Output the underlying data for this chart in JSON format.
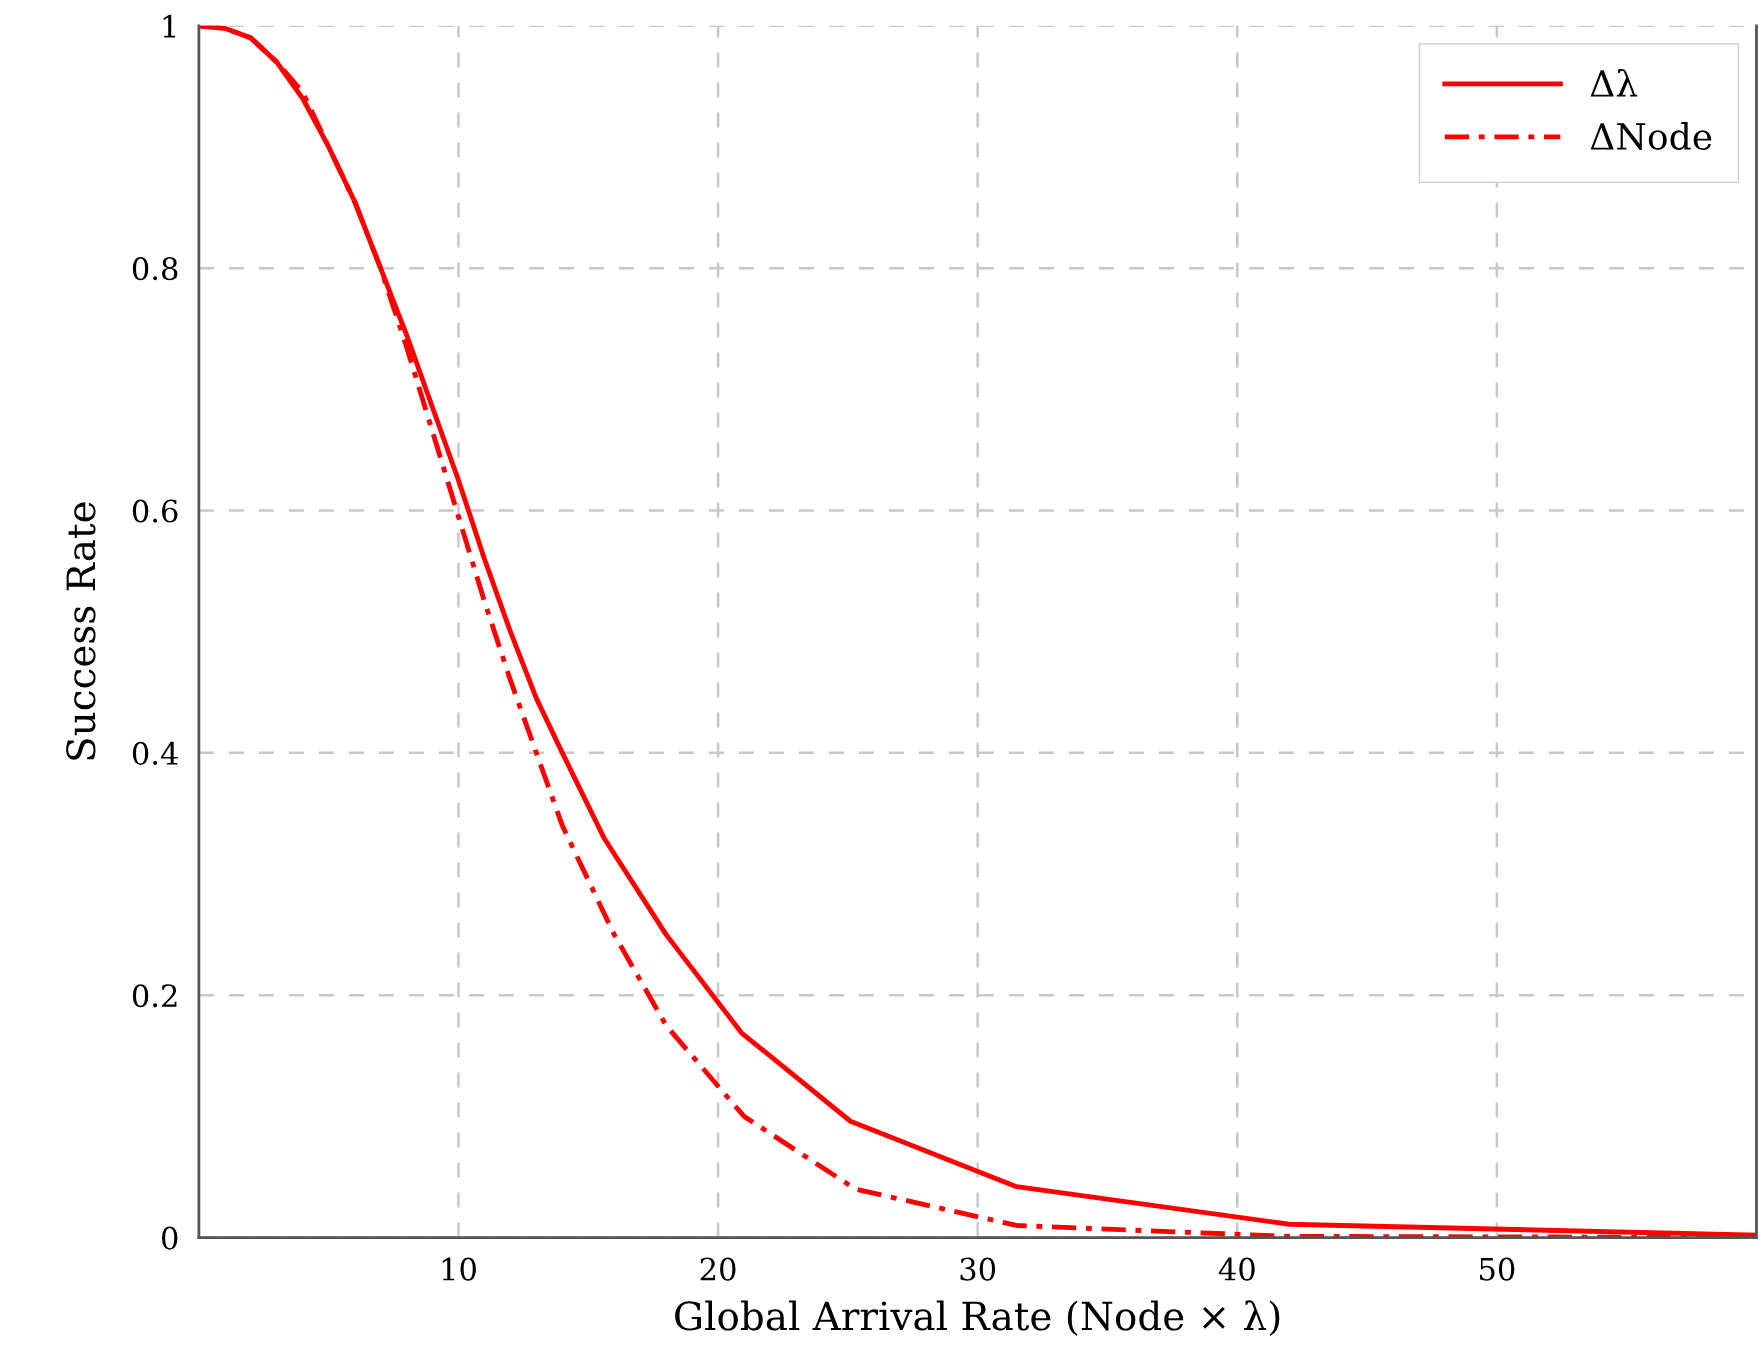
{
  "chart_data": {
    "type": "line",
    "xlabel": "Global Arrival Rate (Node × λ)",
    "ylabel": "Success Rate",
    "xlim": [
      0,
      60
    ],
    "xticks": [
      10,
      20,
      30,
      40,
      50
    ],
    "ylim": [
      0,
      1
    ],
    "yticks": [
      0,
      0.2,
      0.4,
      0.6,
      0.8,
      1
    ],
    "grid": true,
    "legend": "top right",
    "series": [
      {
        "name": "Δλ",
        "color": "#ff0000",
        "line_style": "solid",
        "x": [
          0,
          1,
          2,
          3,
          4,
          5,
          6,
          7,
          8,
          9,
          10,
          11,
          12,
          13,
          14,
          15.6,
          18,
          20.9,
          25.1,
          31.5,
          42,
          60
        ],
        "values": [
          1,
          0.998,
          0.99,
          0.97,
          0.94,
          0.9,
          0.855,
          0.8,
          0.745,
          0.685,
          0.625,
          0.56,
          0.5,
          0.445,
          0.4,
          0.33,
          0.25,
          0.169,
          0.096,
          0.042,
          0.011,
          0.002
        ]
      },
      {
        "name": "ΔNode",
        "color": "#ff0000",
        "line_style": "dashdot",
        "x": [
          0,
          1,
          2,
          3,
          4,
          5,
          6,
          7,
          8,
          9,
          10,
          11,
          12,
          13,
          14,
          16,
          18,
          21,
          25.3,
          31.5,
          42,
          60
        ],
        "values": [
          1,
          0.998,
          0.99,
          0.97,
          0.945,
          0.9,
          0.855,
          0.8,
          0.735,
          0.665,
          0.595,
          0.525,
          0.46,
          0.4,
          0.34,
          0.25,
          0.175,
          0.1,
          0.04,
          0.01,
          0.001,
          0
        ]
      }
    ]
  }
}
